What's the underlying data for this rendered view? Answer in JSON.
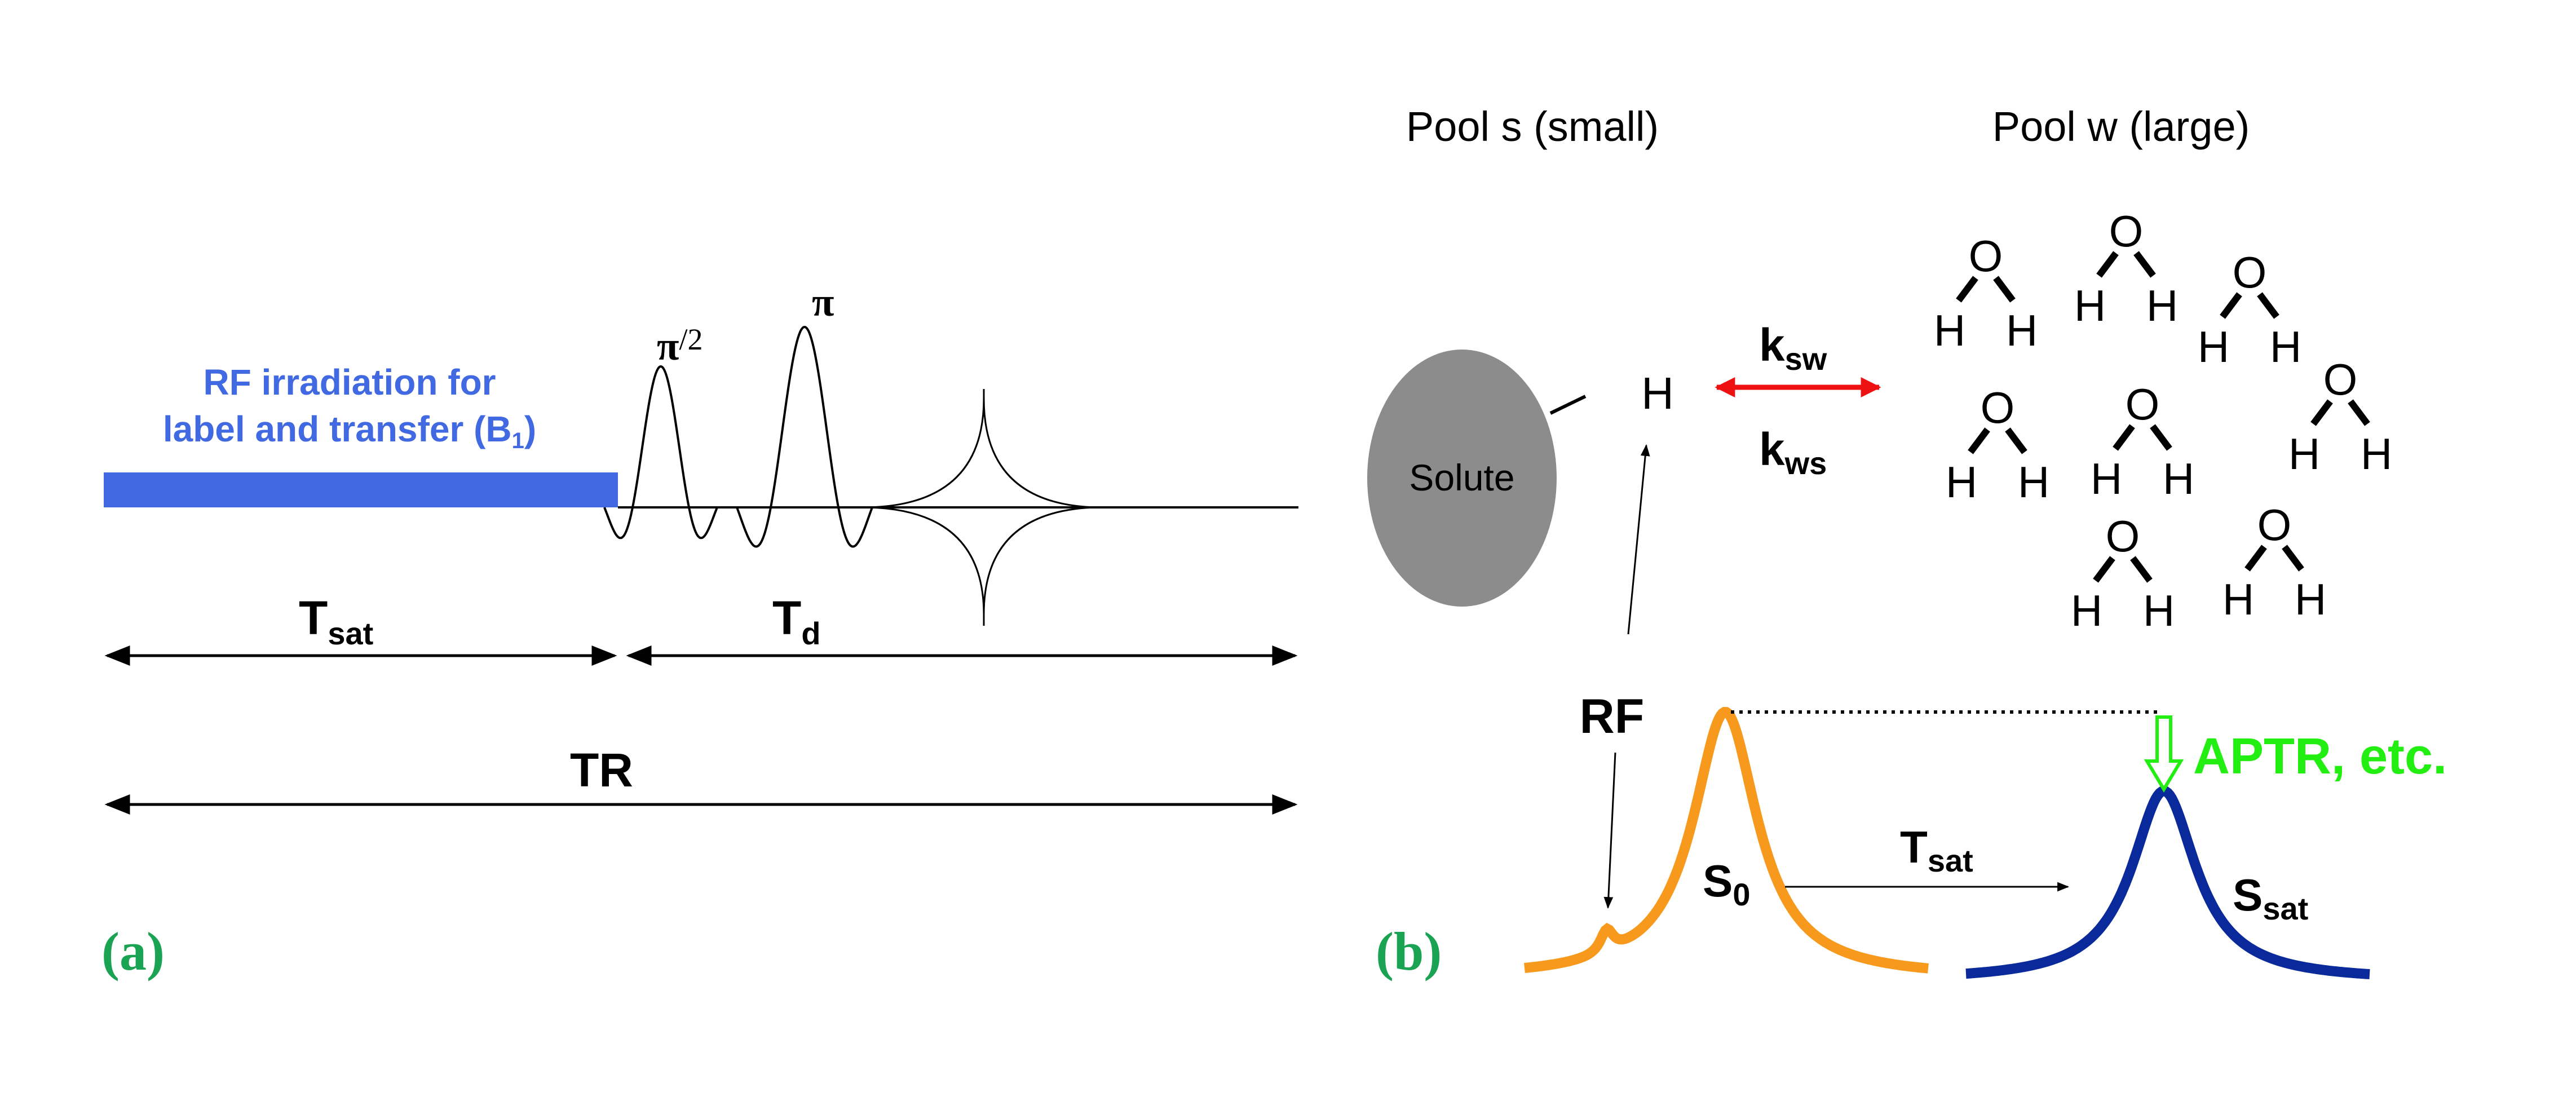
{
  "panel_a": {
    "label": "(a)",
    "rf_text_line1": "RF irradiation for",
    "rf_text_line2": "label and transfer (B",
    "rf_text_sub": "1",
    "rf_text_close": ")",
    "pulse1_label": "π",
    "pulse1_sup": "/2",
    "pulse2_label": "π",
    "tsat_main": "T",
    "tsat_sub": "sat",
    "td_main": "T",
    "td_sub": "d",
    "tr_label": "TR"
  },
  "panel_b": {
    "label": "(b)",
    "pool_s": "Pool s (small)",
    "pool_w": "Pool w (large)",
    "solute": "Solute",
    "proton": "H",
    "ksw_main": "k",
    "ksw_sub": "sw",
    "kws_main": "k",
    "kws_sub": "ws",
    "water_o": "O",
    "water_h": "H",
    "rf_label": "RF",
    "s0_main": "S",
    "s0_sub": "0",
    "tsat_main": "T",
    "tsat_sub": "sat",
    "ssat_main": "S",
    "ssat_sub": "sat",
    "aptr_label": "APTR, etc."
  },
  "colors": {
    "rf_blue": "#4169e1",
    "panel_label_green": "#1aa352",
    "solute_gray": "#8c8c8c",
    "exchange_red": "#ee1111",
    "s0_orange": "#f7991c",
    "ssat_blue": "#0a2a9c",
    "aptr_green": "#22ee11"
  }
}
